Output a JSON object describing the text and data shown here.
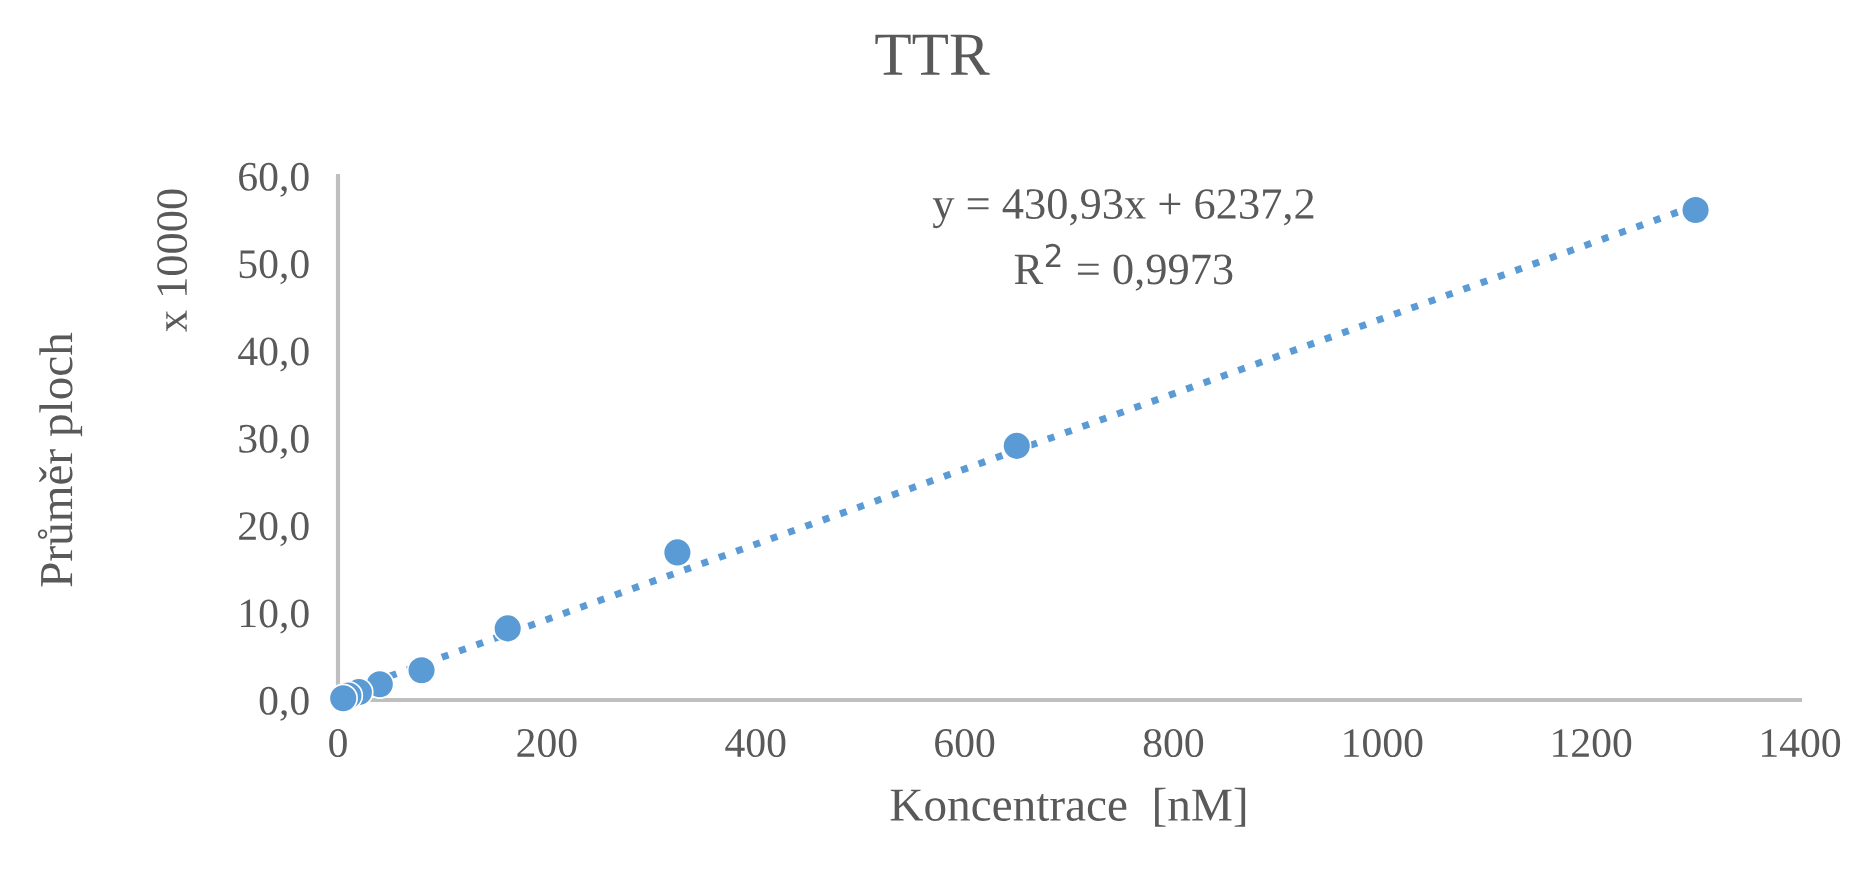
{
  "chart_data": {
    "type": "scatter",
    "title": "TTR",
    "xlabel": "Koncentrace  [nM]",
    "ylabel": "Průměr ploch",
    "annotations": [
      "x 10000",
      "y = 430,93x + 6237,2",
      "R$^{2}$ = 0,9973"
    ],
    "series": [
      {
        "color": "#5b9bd5",
        "marker": "circle",
        "x": [
          5,
          10,
          20,
          40,
          80,
          162.5,
          325,
          650,
          1300
        ],
        "values": [
          0.2,
          0.5,
          0.9,
          1.8,
          3.4,
          8.2,
          16.9,
          29.1,
          56.1
        ]
      },
      {
        "type": "line",
        "color": "#5b9bd5",
        "line_style": "dotted",
        "marker": "none",
        "x": [
          0,
          1300
        ],
        "values": [
          0.6,
          56.6
        ]
      }
    ],
    "xlim": [
      0,
      1400
    ],
    "xticks": [
      0,
      200,
      400,
      600,
      800,
      1000,
      1200,
      1400
    ],
    "ylim": [
      0,
      60
    ],
    "yticks": [
      {
        "value": 0,
        "label": "0,0"
      },
      {
        "value": 10,
        "label": "10,0"
      },
      {
        "value": 20,
        "label": "20,0"
      },
      {
        "value": 30,
        "label": "30,0"
      },
      {
        "value": 40,
        "label": "40,0"
      },
      {
        "value": 50,
        "label": "50,0"
      },
      {
        "value": 60,
        "label": "60,0"
      }
    ],
    "grid": false,
    "legend": false
  }
}
